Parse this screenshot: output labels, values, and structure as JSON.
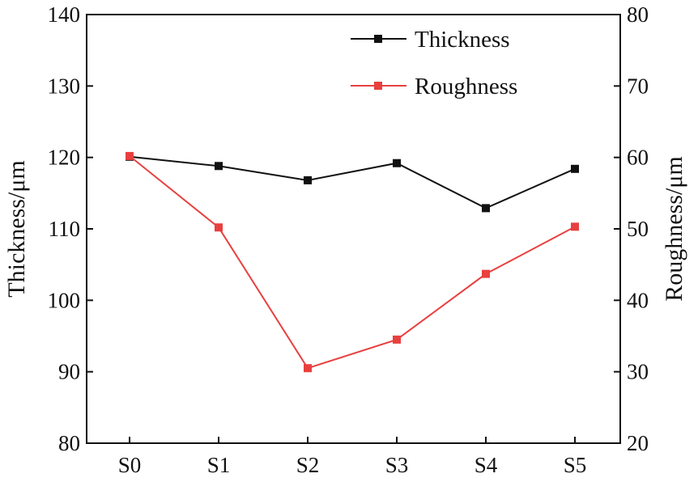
{
  "chart_data": {
    "type": "line",
    "categories": [
      "S0",
      "S1",
      "S2",
      "S3",
      "S4",
      "S5"
    ],
    "y_left": {
      "label": "Thickness/μm",
      "lim": [
        80,
        140
      ],
      "ticks": [
        80,
        90,
        100,
        110,
        120,
        130,
        140
      ],
      "tick_labels": [
        "80",
        "90",
        "100",
        "110",
        "120",
        "130",
        "140"
      ]
    },
    "y_right": {
      "label": "Roughness/μm",
      "lim": [
        20,
        80
      ],
      "ticks": [
        20,
        30,
        40,
        50,
        60,
        70,
        80
      ],
      "tick_labels": [
        "20",
        "30",
        "40",
        "50",
        "60",
        "70",
        "80"
      ]
    },
    "series": [
      {
        "name": "Thickness",
        "axis": "left",
        "color": "#111111",
        "marker": "square",
        "values": [
          120.1,
          118.8,
          116.8,
          119.2,
          112.9,
          118.4
        ]
      },
      {
        "name": "Roughness",
        "axis": "right",
        "color": "#e8403f",
        "marker": "square",
        "values": [
          60.2,
          50.2,
          30.5,
          34.5,
          43.7,
          50.3
        ]
      }
    ],
    "legend_position": "top-right",
    "grid": false
  }
}
